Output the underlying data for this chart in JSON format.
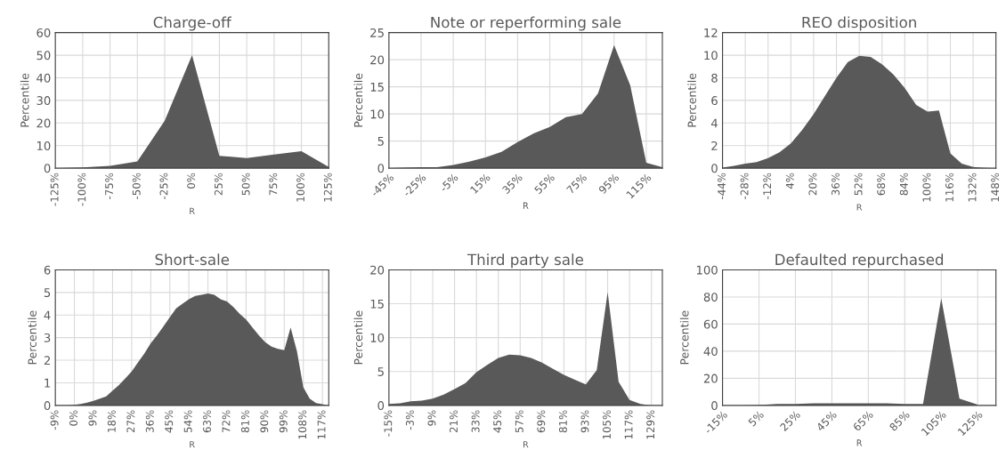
{
  "chart_data": [
    {
      "type": "area",
      "title": "Charge-off",
      "xlabel": "R",
      "ylabel": "Percentile",
      "grid": true,
      "color": "#595959",
      "x": [
        -125,
        -100,
        -75,
        -50,
        -25,
        0,
        25,
        50,
        75,
        100,
        125
      ],
      "values": [
        0,
        0.3,
        1,
        3,
        21,
        50,
        5.5,
        4.5,
        6,
        7.5,
        0.5
      ],
      "xlim": [
        -125,
        125
      ],
      "ylim": [
        0,
        60
      ],
      "yticks": [
        0,
        10,
        20,
        30,
        40,
        50,
        60
      ],
      "xticks": [
        {
          "value": -125,
          "label": "-125%"
        },
        {
          "value": -100,
          "label": "-100%"
        },
        {
          "value": -75,
          "label": "-75%"
        },
        {
          "value": -50,
          "label": "-50%"
        },
        {
          "value": -25,
          "label": "-25%"
        },
        {
          "value": 0,
          "label": "0%"
        },
        {
          "value": 25,
          "label": "25%"
        },
        {
          "value": 50,
          "label": "50%"
        },
        {
          "value": 75,
          "label": "75%"
        },
        {
          "value": 100,
          "label": "100%"
        },
        {
          "value": 125,
          "label": "125%"
        }
      ]
    },
    {
      "type": "area",
      "title": "Note or reperforming sale",
      "xlabel": "R",
      "ylabel": "Percentile",
      "grid": true,
      "color": "#595959",
      "x": [
        -45,
        -35,
        -25,
        -15,
        -5,
        5,
        15,
        25,
        35,
        45,
        55,
        65,
        75,
        85,
        95,
        105,
        115,
        125
      ],
      "values": [
        0,
        0.1,
        0.2,
        0.2,
        0.6,
        1.2,
        2,
        3,
        4.8,
        6.4,
        7.6,
        9.4,
        10,
        13.8,
        22.7,
        15.3,
        1,
        0.2
      ],
      "xlim": [
        -45,
        125
      ],
      "ylim": [
        0,
        25
      ],
      "yticks": [
        0,
        5,
        10,
        15,
        20,
        25
      ],
      "xticks": [
        {
          "value": -45,
          "label": "-45%"
        },
        {
          "value": -25,
          "label": "-25%"
        },
        {
          "value": -5,
          "label": "-5%"
        },
        {
          "value": 15,
          "label": "15%"
        },
        {
          "value": 35,
          "label": "35%"
        },
        {
          "value": 55,
          "label": "55%"
        },
        {
          "value": 75,
          "label": "75%"
        },
        {
          "value": 95,
          "label": "95%"
        },
        {
          "value": 115,
          "label": "115%"
        }
      ]
    },
    {
      "type": "area",
      "title": "REO disposition",
      "xlabel": "R",
      "ylabel": "Percentile",
      "grid": true,
      "color": "#595959",
      "x": [
        -44,
        -36,
        -28,
        -20,
        -12,
        -4,
        4,
        12,
        20,
        28,
        36,
        44,
        52,
        60,
        68,
        76,
        84,
        92,
        100,
        108,
        116,
        124,
        132,
        140,
        148
      ],
      "values": [
        0.05,
        0.2,
        0.4,
        0.55,
        0.9,
        1.4,
        2.2,
        3.4,
        4.8,
        6.4,
        8,
        9.4,
        9.95,
        9.85,
        9.2,
        8.3,
        7.1,
        5.6,
        5,
        5.1,
        1.3,
        0.4,
        0.1,
        0.02,
        0
      ],
      "xlim": [
        -44,
        148
      ],
      "ylim": [
        0,
        12
      ],
      "yticks": [
        0,
        2,
        4,
        6,
        8,
        10,
        12
      ],
      "xticks": [
        {
          "value": -44,
          "label": "-44%"
        },
        {
          "value": -28,
          "label": "-28%"
        },
        {
          "value": -12,
          "label": "-12%"
        },
        {
          "value": 4,
          "label": "4%"
        },
        {
          "value": 20,
          "label": "20%"
        },
        {
          "value": 36,
          "label": "36%"
        },
        {
          "value": 52,
          "label": "52%"
        },
        {
          "value": 68,
          "label": "68%"
        },
        {
          "value": 84,
          "label": "84%"
        },
        {
          "value": 100,
          "label": "100%"
        },
        {
          "value": 116,
          "label": "116%"
        },
        {
          "value": 132,
          "label": "132%"
        },
        {
          "value": 148,
          "label": "148%"
        }
      ]
    },
    {
      "type": "area",
      "title": "Short-sale",
      "xlabel": "R",
      "ylabel": "Percentile",
      "grid": true,
      "color": "#595959",
      "x": [
        -9,
        -6,
        -3,
        0,
        3,
        6,
        9,
        12,
        15,
        18,
        21,
        24,
        27,
        30,
        33,
        36,
        39,
        42,
        45,
        48,
        51,
        54,
        57,
        60,
        63,
        66,
        69,
        72,
        75,
        78,
        81,
        84,
        87,
        90,
        93,
        96,
        99,
        102,
        105,
        108,
        111,
        114,
        117,
        120
      ],
      "values": [
        0,
        0,
        0,
        0.02,
        0.06,
        0.12,
        0.2,
        0.3,
        0.4,
        0.65,
        0.9,
        1.2,
        1.5,
        1.9,
        2.3,
        2.75,
        3.1,
        3.5,
        3.9,
        4.3,
        4.5,
        4.7,
        4.85,
        4.9,
        4.95,
        4.9,
        4.7,
        4.6,
        4.35,
        4.05,
        3.8,
        3.45,
        3.1,
        2.8,
        2.6,
        2.5,
        2.45,
        3.45,
        2.4,
        0.8,
        0.3,
        0.1,
        0.05,
        0
      ],
      "xlim": [
        -9,
        120
      ],
      "ylim": [
        0,
        6
      ],
      "yticks": [
        0,
        1,
        2,
        3,
        4,
        5,
        6
      ],
      "xticks": [
        {
          "value": -9,
          "label": "-9%"
        },
        {
          "value": 0,
          "label": "0%"
        },
        {
          "value": 9,
          "label": "9%"
        },
        {
          "value": 18,
          "label": "18%"
        },
        {
          "value": 27,
          "label": "27%"
        },
        {
          "value": 36,
          "label": "36%"
        },
        {
          "value": 45,
          "label": "45%"
        },
        {
          "value": 54,
          "label": "54%"
        },
        {
          "value": 63,
          "label": "63%"
        },
        {
          "value": 72,
          "label": "72%"
        },
        {
          "value": 81,
          "label": "81%"
        },
        {
          "value": 90,
          "label": "90%"
        },
        {
          "value": 99,
          "label": "99%"
        },
        {
          "value": 108,
          "label": "108%"
        },
        {
          "value": 117,
          "label": "117%"
        }
      ]
    },
    {
      "type": "area",
      "title": "Third party sale",
      "xlabel": "R",
      "ylabel": "Percentile",
      "grid": true,
      "color": "#595959",
      "x": [
        -15,
        -9,
        -3,
        3,
        9,
        15,
        21,
        27,
        33,
        39,
        45,
        51,
        57,
        63,
        69,
        75,
        81,
        87,
        93,
        99,
        105,
        111,
        117,
        123,
        129,
        135
      ],
      "values": [
        0.2,
        0.3,
        0.6,
        0.7,
        1,
        1.6,
        2.4,
        3.3,
        4.9,
        6,
        7,
        7.5,
        7.4,
        7,
        6.3,
        5.4,
        4.5,
        3.8,
        3.1,
        5.2,
        16.7,
        3.5,
        0.8,
        0.2,
        0,
        0
      ],
      "xlim": [
        -15,
        135
      ],
      "ylim": [
        0,
        20
      ],
      "yticks": [
        0,
        5,
        10,
        15,
        20
      ],
      "xticks": [
        {
          "value": -15,
          "label": "-15%"
        },
        {
          "value": -3,
          "label": "-3%"
        },
        {
          "value": 9,
          "label": "9%"
        },
        {
          "value": 21,
          "label": "21%"
        },
        {
          "value": 33,
          "label": "33%"
        },
        {
          "value": 45,
          "label": "45%"
        },
        {
          "value": 57,
          "label": "57%"
        },
        {
          "value": 69,
          "label": "69%"
        },
        {
          "value": 81,
          "label": "81%"
        },
        {
          "value": 93,
          "label": "93%"
        },
        {
          "value": 105,
          "label": "105%"
        },
        {
          "value": 117,
          "label": "117%"
        },
        {
          "value": 129,
          "label": "129%"
        }
      ]
    },
    {
      "type": "area",
      "title": "Defaulted repurchased",
      "xlabel": "R",
      "ylabel": "Percentile",
      "grid": true,
      "color": "#595959",
      "x": [
        -15,
        -5,
        5,
        15,
        25,
        35,
        45,
        55,
        65,
        75,
        85,
        95,
        105,
        115,
        125
      ],
      "values": [
        0,
        0,
        0.3,
        1,
        1,
        1.5,
        1.5,
        1.5,
        1.5,
        1.5,
        1,
        1,
        79,
        5,
        0.5
      ],
      "xlim": [
        -15,
        135
      ],
      "ylim": [
        0,
        100
      ],
      "yticks": [
        0,
        20,
        40,
        60,
        80,
        100
      ],
      "xticks": [
        {
          "value": -15,
          "label": "-15%"
        },
        {
          "value": 5,
          "label": "5%"
        },
        {
          "value": 25,
          "label": "25%"
        },
        {
          "value": 45,
          "label": "45%"
        },
        {
          "value": 65,
          "label": "65%"
        },
        {
          "value": 85,
          "label": "85%"
        },
        {
          "value": 105,
          "label": "105%"
        },
        {
          "value": 125,
          "label": "125%"
        }
      ]
    }
  ]
}
